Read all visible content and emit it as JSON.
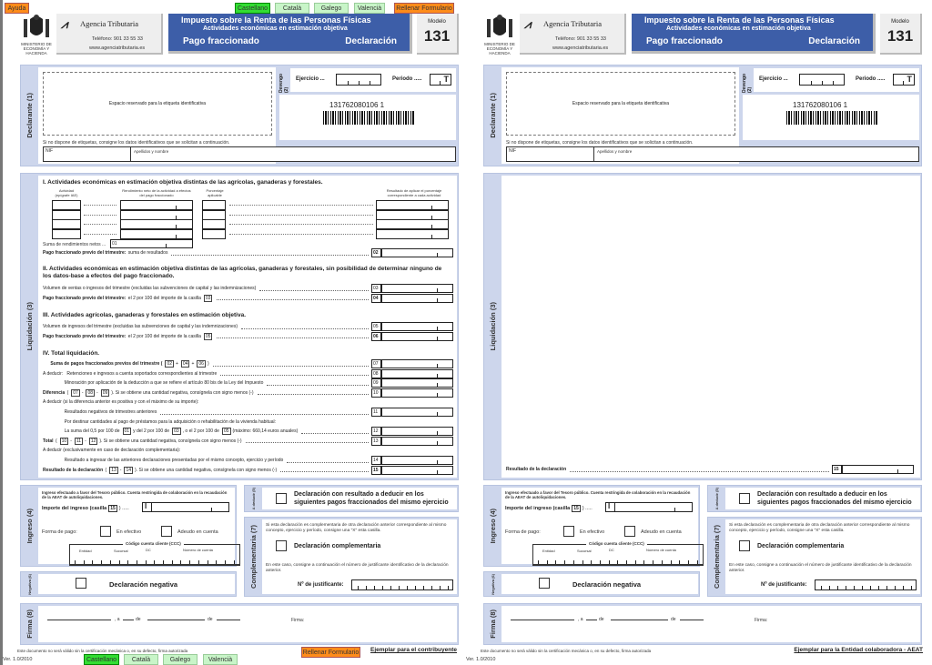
{
  "buttons": {
    "help": "Ayuda",
    "languages": [
      "Castellano",
      "Català",
      "Galego",
      "Valencià"
    ],
    "fill": "Rellenar Formulario"
  },
  "ministry": "MINISTERIO DE ECONOMÍA Y HACIENDA",
  "agency": {
    "name": "Agencia Tributaria",
    "phone": "Teléfono: 901 33 55 33",
    "web": "www.agenciatributaria.es"
  },
  "title": {
    "line1": "Impuesto sobre la Renta de las Personas Físicas",
    "line2": "Actividades económicas en estimación objetiva",
    "left": "Pago fraccionado",
    "right": "Declaración"
  },
  "modelo": {
    "label": "Modelo",
    "number": "131"
  },
  "declarante": {
    "strip": "Declarante (1)",
    "label_space": "Espacio reservado para la etiqueta identificativa",
    "devengo": "Devengo (2)",
    "ejercicio": "Ejercicio ...",
    "periodo": "Periodo .....",
    "periodo_suffix": "T",
    "barcode_number": "131762080106 1",
    "no_label": "Si no dispone de etiquetas, consigne los datos identificativos que se solicitan a continuación.",
    "nif": "NIF",
    "apellidos": "Apellidos y nombre"
  },
  "liquidacion": {
    "strip": "Liquidación (3)",
    "s1": {
      "title": "I.  Actividades económicas en estimación objetiva distintas de las agrícolas, ganaderas y forestales.",
      "col_actividad": "Actividad (epígrafe IAE)",
      "col_rendimiento": "Rendimiento neto de la actividad a efectos del pago fraccionado",
      "col_porcentaje": "Porcentaje aplicable",
      "col_resultado": "Resultado de aplicar el porcentaje correspondiente a cada actividad",
      "suma_label": "Suma de rendimientos netos ...",
      "suma_code": "01",
      "rows": [
        [
          {
            "t": "Pago fraccionado previo del trimestre:",
            "b": true
          },
          {
            "t": " suma de resultados"
          },
          {
            "code": "02",
            "b": true
          }
        ]
      ]
    },
    "s2": {
      "title": "II.  Actividades económicas en estimación objetiva distintas de las agrícolas, ganaderas y forestales, sin posibilidad de determinar ninguno de los datos-base a efectos del pago fraccionado.",
      "rows": [
        [
          {
            "t": "Volumen de ventas o ingresos del trimestre (excluidas las subvenciones de capital y las indemnizaciones)"
          },
          {
            "code": "03"
          }
        ],
        [
          {
            "t": "Pago fraccionado previo del trimestre:",
            "b": true
          },
          {
            "t": " el 2 por 100 del importe de la casilla"
          },
          {
            "ref": "03"
          },
          {
            "code": "04",
            "b": true
          }
        ]
      ]
    },
    "s3": {
      "title": "III.  Actividades agrícolas, ganaderas y forestales en estimación objetiva.",
      "rows": [
        [
          {
            "t": "Volumen de ingresos del trimestre (excluidas las subvenciones de capital y las indemnizaciones)"
          },
          {
            "code": "05"
          }
        ],
        [
          {
            "t": "Pago fraccionado previo del trimestre:",
            "b": true
          },
          {
            "t": " el 2 por 100 del importe de la casilla"
          },
          {
            "ref": "05"
          },
          {
            "code": "06",
            "b": true
          }
        ]
      ]
    },
    "s4": {
      "title": "IV.  Total liquidación.",
      "rows": [
        [
          {
            "t": "      Suma de pagos fraccionados previos del trimestre (",
            "b": true
          },
          {
            "ref": "02"
          },
          {
            "t": "+"
          },
          {
            "ref": "04"
          },
          {
            "t": "+"
          },
          {
            "ref": "06"
          },
          {
            "t": ")"
          },
          {
            "code": "07"
          }
        ],
        [
          {
            "t": "A deducir:   Retenciones e ingresos a cuenta soportados correspondientes al trimestre"
          },
          {
            "code": "08"
          }
        ],
        [
          {
            "t": "                 Minoración por aplicación de la deducción a que se refiere el artículo 80 bis de la Ley del Impuesto"
          },
          {
            "code": "09"
          }
        ],
        [
          {
            "t": "Diferencia",
            "b": true
          },
          {
            "t": " ("
          },
          {
            "ref": "07"
          },
          {
            "t": "-"
          },
          {
            "ref": "08"
          },
          {
            "t": "-"
          },
          {
            "ref": "09"
          },
          {
            "t": "). Si se obtiene una cantidad negativa, consígnela con signo menos (-)"
          },
          {
            "code": "10"
          }
        ],
        [
          {
            "t": "A deducir (si la diferencia anterior es positiva y con el máximo de su importe):"
          }
        ],
        [
          {
            "t": "                 Resultados negativos de trimestres anteriores"
          },
          {
            "code": "11"
          }
        ],
        [
          {
            "t": "                 Por destinar cantidades al pago de préstamos para la adquisición o rehabilitación de la vivienda habitual:"
          }
        ],
        [
          {
            "t": "                 La suma del 0,5 por 100 de"
          },
          {
            "ref": "01"
          },
          {
            "t": "y del 2 por 100 de"
          },
          {
            "ref": "03"
          },
          {
            "t": ", o el 2 por 100 de"
          },
          {
            "ref": "05"
          },
          {
            "t": "(máximo: 660,14 euros anuales)"
          },
          {
            "code": "12"
          }
        ],
        [
          {
            "t": "Total",
            "b": true
          },
          {
            "t": " ("
          },
          {
            "ref": "10"
          },
          {
            "t": "-"
          },
          {
            "ref": "11"
          },
          {
            "t": "-"
          },
          {
            "ref": "12"
          },
          {
            "t": "). Si se obtiene una cantidad negativa, consígnela con signo menos (-)"
          },
          {
            "code": "13"
          }
        ],
        [
          {
            "t": "A deducir (exclusivamente en caso de declaración complementaria):"
          }
        ],
        [
          {
            "t": "                 Resultado a ingresar de las anteriores declaraciones presentadas por el mismo concepto, ejercicio y período"
          },
          {
            "code": "14"
          }
        ],
        [
          {
            "t": "Resultado de la declaración",
            "b": true
          },
          {
            "t": " ("
          },
          {
            "ref": "13"
          },
          {
            "t": "-"
          },
          {
            "ref": "14"
          },
          {
            "t": "). Si se obtiene una cantidad negativa, consígnela con signo menos (-)"
          },
          {
            "code": "15",
            "b": true
          }
        ]
      ]
    },
    "resultado_only": [
      {
        "t": "Resultado de la declaración",
        "b": true
      },
      {
        "code": "15",
        "b": true
      }
    ]
  },
  "ingreso": {
    "strip": "Ingreso (4)",
    "note": "Ingreso efectuado a favor del Tesoro público. Cuenta restringida de colaboración en la recaudación de la AEAT de autoliquidaciones.",
    "importe": "Importe del ingreso (casilla",
    "importe_ref": "15",
    "importe_end": ") .....",
    "importe_prefix": "I",
    "forma": "Forma de pago:",
    "efectivo": "En efectivo",
    "adeudo": "Adeudo en cuenta",
    "ccc": "Código cuenta cliente (CCC)",
    "entidad": "Entidad",
    "sucursal": "Sucursal",
    "dc": "DC",
    "cuenta": "Número de cuenta"
  },
  "negativa": {
    "strip": "Negativa (6)",
    "label": "Declaración negativa"
  },
  "a_deducir": {
    "strip": "A deducir (5)",
    "label": "Declaración con resultado a deducir en los siguientes pagos fraccionados del mismo ejercicio"
  },
  "complementaria": {
    "strip": "Complementaria (7)",
    "note": "Si esta declaración es complementaria de otra declaración anterior correspondiente al mismo concepto, ejercicio y período, consigne una \"X\" esta casilla.",
    "label": "Declaración complementaria",
    "note2": "En este caso, consigne a continuación el número de justificante identificativo de la declaración anterior.",
    "justificante": "Nº de justificante:"
  },
  "firma": {
    "strip": "Firma (8)",
    "a": ", a",
    "de1": "de",
    "de2": "de",
    "firma": "Firma:"
  },
  "footer": {
    "validity": "Este documento no será válido sin la certificación mecánica o, en su defecto, firma autorizada",
    "version": "Ver. 1.0/2010",
    "copy_left": "Ejemplar para el contribuyente",
    "copy_right": "Ejemplar para la Entidad colaboradora - AEAT"
  },
  "colors": {
    "title_bg": "#3d5ea8",
    "section": "#cdd6ec",
    "active_lang": "#33dd33",
    "orange": "#ff8c1a"
  }
}
